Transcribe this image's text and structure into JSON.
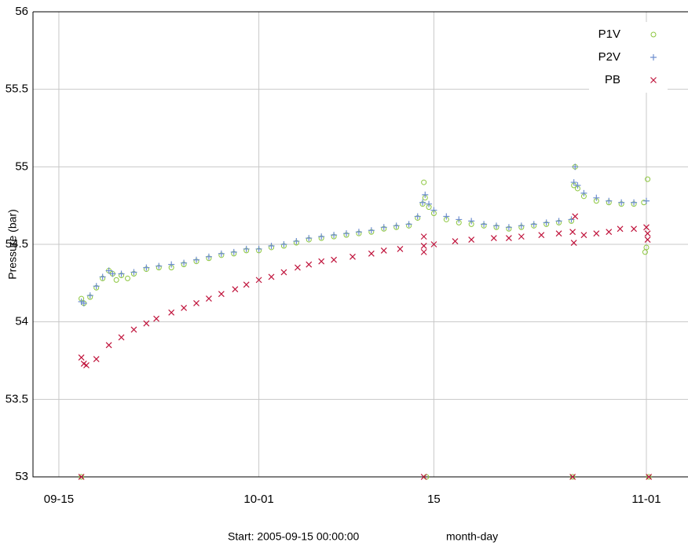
{
  "chart_data": {
    "type": "scatter",
    "ylabel": "Pressure (bar)",
    "xlabel": "Start: 2005-09-15 00:00:00",
    "xunit": "month-day",
    "xlim": [
      -2.07,
      50.33
    ],
    "xticks": [
      {
        "value": 0,
        "label": "09-15"
      },
      {
        "value": 16,
        "label": "10-01"
      },
      {
        "value": 30,
        "label": "15"
      },
      {
        "value": 47,
        "label": "11-01"
      }
    ],
    "ylim": [
      53,
      56
    ],
    "yticks": [
      53,
      53.5,
      54,
      54.5,
      55,
      55.5,
      56
    ],
    "grid": true,
    "legend": "upper right",
    "series": [
      {
        "name": "P1V",
        "color": "#8cc63e",
        "marker": "circle",
        "x": [
          1.8,
          1.8,
          2.0,
          2.5,
          3.0,
          3.5,
          4.0,
          4.3,
          4.6,
          5.0,
          5.5,
          6,
          7,
          8,
          9,
          10,
          11,
          12,
          13,
          14,
          15,
          16,
          17,
          18,
          19,
          20,
          21,
          22,
          23,
          24,
          25,
          26,
          27,
          28,
          28.7,
          29.1,
          29.2,
          29.3,
          29.4,
          29.6,
          30,
          31,
          32,
          33,
          34,
          35,
          36,
          37,
          38,
          39,
          40,
          41,
          41.1,
          41.2,
          41.3,
          41.5,
          42,
          43,
          44,
          45,
          46,
          46.8,
          46.9,
          47,
          47.1,
          47.2
        ],
        "values": [
          54.15,
          53,
          54.12,
          54.16,
          54.22,
          54.28,
          54.33,
          54.31,
          54.27,
          54.3,
          54.28,
          54.31,
          54.34,
          54.35,
          54.35,
          54.37,
          54.39,
          54.41,
          54.43,
          54.44,
          54.46,
          54.46,
          54.48,
          54.49,
          54.51,
          54.53,
          54.54,
          54.55,
          54.56,
          54.57,
          54.58,
          54.6,
          54.61,
          54.62,
          54.67,
          54.76,
          54.9,
          54.8,
          53,
          54.74,
          54.7,
          54.66,
          54.64,
          54.63,
          54.62,
          54.61,
          54.6,
          54.61,
          54.62,
          54.63,
          54.64,
          54.65,
          53,
          54.88,
          55.0,
          54.86,
          54.81,
          54.78,
          54.77,
          54.76,
          54.76,
          54.77,
          54.45,
          54.48,
          54.92,
          53
        ]
      },
      {
        "name": "P2V",
        "color": "#6f8fcf",
        "marker": "plus",
        "x": [
          1.8,
          2.0,
          2.5,
          3.0,
          3.5,
          4.0,
          4.3,
          5.0,
          6,
          7,
          8,
          9,
          10,
          11,
          12,
          13,
          14,
          15,
          16,
          17,
          18,
          19,
          20,
          21,
          22,
          23,
          24,
          25,
          26,
          27,
          28,
          28.7,
          29.1,
          29.3,
          29.6,
          30,
          31,
          32,
          33,
          34,
          35,
          36,
          37,
          38,
          39,
          40,
          41,
          41.2,
          41.3,
          41.5,
          42,
          43,
          44,
          45,
          46,
          47
        ],
        "values": [
          54.13,
          54.12,
          54.17,
          54.23,
          54.29,
          54.33,
          54.31,
          54.31,
          54.32,
          54.35,
          54.36,
          54.37,
          54.38,
          54.4,
          54.42,
          54.44,
          54.45,
          54.47,
          54.47,
          54.49,
          54.5,
          54.52,
          54.54,
          54.55,
          54.56,
          54.57,
          54.58,
          54.59,
          54.61,
          54.62,
          54.63,
          54.68,
          54.77,
          54.82,
          54.76,
          54.72,
          54.68,
          54.66,
          54.65,
          54.63,
          54.62,
          54.61,
          54.62,
          54.63,
          54.64,
          54.65,
          54.66,
          54.9,
          55.0,
          54.88,
          54.83,
          54.8,
          54.78,
          54.77,
          54.77,
          54.78
        ]
      },
      {
        "name": "PB",
        "color": "#c0143c",
        "marker": "cross",
        "x": [
          1.8,
          1.8,
          2.0,
          2.2,
          3,
          4,
          5,
          6,
          7,
          7.8,
          9,
          10,
          11,
          12,
          13,
          14.1,
          15,
          16,
          17,
          18,
          19.1,
          20,
          21,
          22,
          23.5,
          25,
          26,
          27.3,
          29.2,
          29.2,
          29.2,
          29.2,
          30,
          31.7,
          33,
          34.8,
          36,
          37,
          38.6,
          40,
          41.1,
          41.1,
          41.2,
          41.3,
          42,
          43,
          44,
          44.9,
          46,
          47,
          47.1,
          47.1,
          47.2
        ],
        "values": [
          53.77,
          53,
          53.73,
          53.72,
          53.76,
          53.85,
          53.9,
          53.95,
          53.99,
          54.02,
          54.06,
          54.09,
          54.12,
          54.15,
          54.18,
          54.21,
          54.24,
          54.27,
          54.29,
          54.32,
          54.35,
          54.37,
          54.39,
          54.4,
          54.42,
          54.44,
          54.46,
          54.47,
          54.49,
          54.55,
          54.45,
          53,
          54.5,
          54.52,
          54.53,
          54.54,
          54.54,
          54.55,
          54.56,
          54.57,
          54.58,
          53,
          54.51,
          54.68,
          54.56,
          54.57,
          54.58,
          54.6,
          54.6,
          54.61,
          54.53,
          54.57,
          53
        ]
      }
    ]
  }
}
